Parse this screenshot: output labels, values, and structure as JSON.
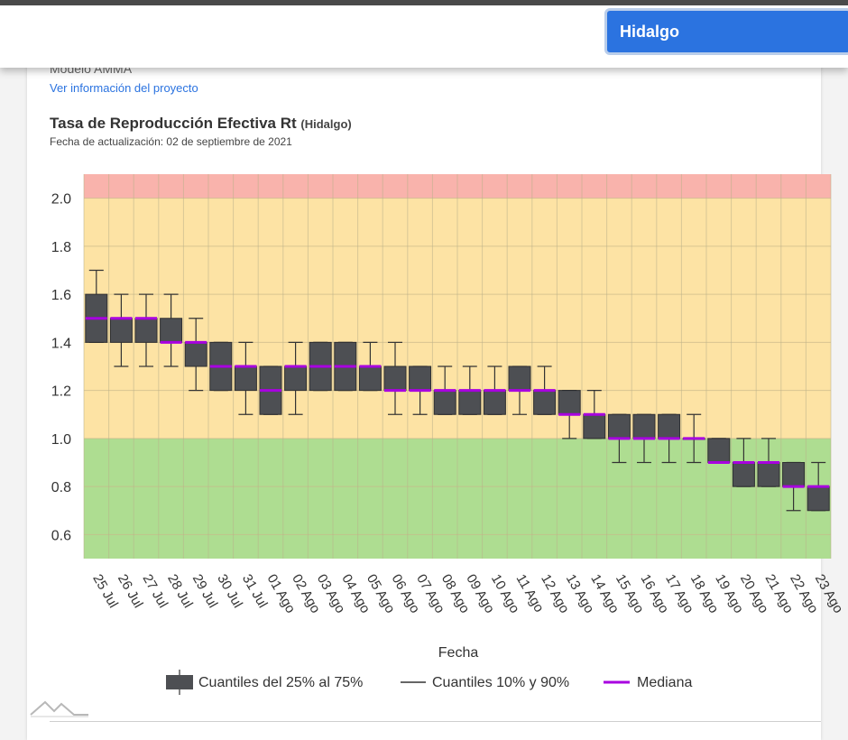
{
  "header": {
    "state_selected": "Hidalgo"
  },
  "model": {
    "name": "Modelo AMMA",
    "project_link": "Ver información del proyecto"
  },
  "chart_header": {
    "title": "Tasa de Reproducción Efectiva Rt",
    "region": "(Hidalgo)",
    "updated": "Fecha de actualización: 02 de septiembre de 2021"
  },
  "chart_data": {
    "type": "boxplot",
    "title": "Tasa de Reproducción Efectiva Rt",
    "xlabel": "Fecha",
    "ylabel": "",
    "ylim": [
      0.5,
      2.1
    ],
    "yticks": [
      "0.6",
      "0.8",
      "1.0",
      "1.2",
      "1.4",
      "1.6",
      "1.8",
      "2.0"
    ],
    "grid": true,
    "bands": [
      {
        "from": 0.5,
        "to": 1.0,
        "color": "#aedd91"
      },
      {
        "from": 1.0,
        "to": 2.0,
        "color": "#fde3a4"
      },
      {
        "from": 2.0,
        "to": 2.1,
        "color": "#f9b3ac"
      }
    ],
    "categories": [
      "25 Jul",
      "26 Jul",
      "27 Jul",
      "28 Jul",
      "29 Jul",
      "30 Jul",
      "31 Jul",
      "01 Ago",
      "02 Ago",
      "03 Ago",
      "04 Ago",
      "05 Ago",
      "06 Ago",
      "07 Ago",
      "08 Ago",
      "09 Ago",
      "10 Ago",
      "11 Ago",
      "12 Ago",
      "13 Ago",
      "14 Ago",
      "15 Ago",
      "16 Ago",
      "17 Ago",
      "18 Ago",
      "19 Ago",
      "20 Ago",
      "21 Ago",
      "22 Ago",
      "23 Ago"
    ],
    "series": [
      {
        "name": "Cuantiles del 25% al 75%",
        "low": [
          1.4,
          1.4,
          1.4,
          1.4,
          1.3,
          1.2,
          1.2,
          1.1,
          1.2,
          1.2,
          1.2,
          1.2,
          1.2,
          1.2,
          1.1,
          1.1,
          1.1,
          1.2,
          1.1,
          1.1,
          1.0,
          1.0,
          1.0,
          1.0,
          1.0,
          0.9,
          0.8,
          0.8,
          0.8,
          0.7
        ],
        "high": [
          1.6,
          1.5,
          1.5,
          1.5,
          1.4,
          1.4,
          1.3,
          1.3,
          1.3,
          1.4,
          1.4,
          1.3,
          1.3,
          1.3,
          1.2,
          1.2,
          1.2,
          1.3,
          1.2,
          1.2,
          1.1,
          1.1,
          1.1,
          1.1,
          1.0,
          1.0,
          0.9,
          0.9,
          0.9,
          0.8
        ],
        "color": "#4d4f53"
      },
      {
        "name": "Cuantiles 10% y 90%",
        "low": [
          1.4,
          1.3,
          1.3,
          1.3,
          1.2,
          1.2,
          1.1,
          1.1,
          1.1,
          1.2,
          1.2,
          1.2,
          1.1,
          1.1,
          1.1,
          1.1,
          1.1,
          1.1,
          1.1,
          1.0,
          1.0,
          0.9,
          0.9,
          0.9,
          0.9,
          0.9,
          0.8,
          0.8,
          0.7,
          0.7
        ],
        "high": [
          1.7,
          1.6,
          1.6,
          1.6,
          1.5,
          1.4,
          1.4,
          1.3,
          1.4,
          1.4,
          1.4,
          1.4,
          1.4,
          1.3,
          1.3,
          1.3,
          1.3,
          1.3,
          1.3,
          1.2,
          1.2,
          1.1,
          1.1,
          1.1,
          1.1,
          1.0,
          1.0,
          1.0,
          0.9,
          0.9
        ],
        "color": "#333333"
      },
      {
        "name": "Mediana",
        "values": [
          1.5,
          1.5,
          1.5,
          1.4,
          1.4,
          1.3,
          1.3,
          1.2,
          1.3,
          1.3,
          1.3,
          1.3,
          1.2,
          1.2,
          1.2,
          1.2,
          1.2,
          1.2,
          1.2,
          1.1,
          1.1,
          1.0,
          1.0,
          1.0,
          1.0,
          0.9,
          0.9,
          0.9,
          0.8,
          0.8
        ],
        "color": "#a800e0"
      }
    ],
    "legend_position": "bottom-center"
  }
}
